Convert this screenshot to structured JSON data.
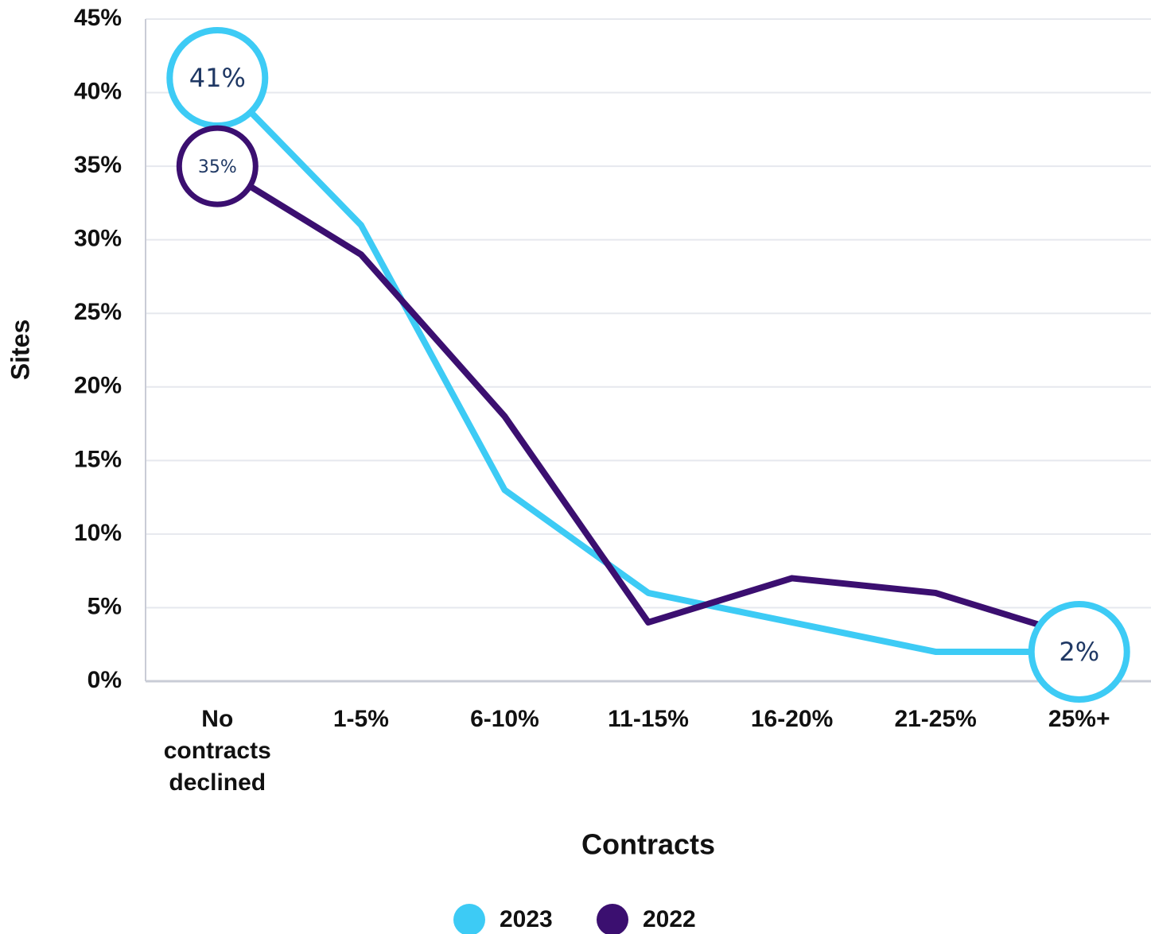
{
  "chart_data": {
    "type": "line",
    "categories": [
      "No contracts declined",
      "1-5%",
      "6-10%",
      "11-15%",
      "16-20%",
      "21-25%",
      "25%+"
    ],
    "series": [
      {
        "name": "2023",
        "color": "#3dcbf5",
        "values": [
          41,
          31,
          13,
          6,
          4,
          2,
          2
        ],
        "value_labels": [
          "41%",
          null,
          null,
          null,
          null,
          null,
          "2%"
        ]
      },
      {
        "name": "2022",
        "color": "#3b0f70",
        "values": [
          35,
          29,
          18,
          4,
          7,
          6,
          3
        ],
        "value_labels": [
          "35%",
          null,
          null,
          null,
          null,
          null,
          null
        ]
      }
    ],
    "xlabel": "Contracts",
    "ylabel": "Sites",
    "ylim": [
      0,
      45
    ],
    "yticks": [
      {
        "value": 0,
        "label": "0%"
      },
      {
        "value": 5,
        "label": "5%"
      },
      {
        "value": 10,
        "label": "10%"
      },
      {
        "value": 15,
        "label": "15%"
      },
      {
        "value": 20,
        "label": "20%"
      },
      {
        "value": 25,
        "label": "25%"
      },
      {
        "value": 30,
        "label": "30%"
      },
      {
        "value": 35,
        "label": "35%"
      },
      {
        "value": 40,
        "label": "40%"
      },
      {
        "value": 45,
        "label": "45%"
      }
    ],
    "grid": true,
    "legend": "bottom"
  }
}
